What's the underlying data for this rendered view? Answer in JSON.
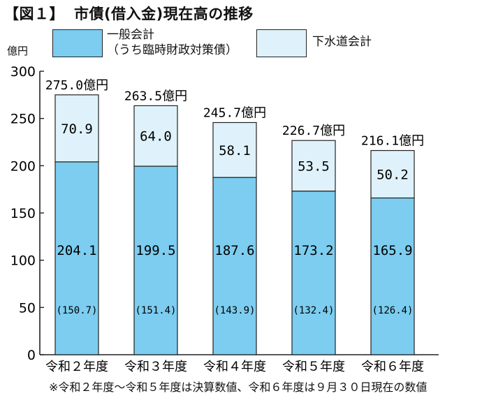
{
  "title": {
    "figure_no": "【図１】",
    "text": "市債(借入金)現在高の推移"
  },
  "unit": "億円",
  "legend": [
    {
      "line1": "一般会計",
      "line2": "（うち臨時財政対策債）",
      "color": "#7ccdf0"
    },
    {
      "line1": "下水道会計",
      "line2": "",
      "color": "#dff2fb"
    }
  ],
  "footnote": "※令和２年度～令和５年度は決算数値、令和６年度は９月３０日現在の数値",
  "chart_data": {
    "type": "bar",
    "stacked": true,
    "title": "市債(借入金)現在高の推移",
    "ylabel": "億円",
    "ylim": [
      0,
      300
    ],
    "yticks": [
      0,
      50,
      100,
      150,
      200,
      250,
      300
    ],
    "grid": false,
    "legend_position": "top",
    "categories": [
      "令和２年度",
      "令和３年度",
      "令和４年度",
      "令和５年度",
      "令和６年度"
    ],
    "series": [
      {
        "name": "一般会計",
        "color": "#7ccdf0",
        "values": [
          204.1,
          199.5,
          187.6,
          173.2,
          165.9
        ]
      },
      {
        "name": "下水道会計",
        "color": "#dff2fb",
        "values": [
          70.9,
          64.0,
          58.1,
          53.5,
          50.2
        ]
      }
    ],
    "sub_values": {
      "name": "うち臨時財政対策債",
      "values": [
        150.7,
        151.4,
        143.9,
        132.4,
        126.4
      ]
    },
    "totals": [
      275.0,
      263.5,
      245.7,
      226.7,
      216.1
    ],
    "labels": {
      "general": [
        "204.1",
        "199.5",
        "187.6",
        "173.2",
        "165.9"
      ],
      "sewer": [
        "70.9",
        "64.0",
        "58.1",
        "53.5",
        "50.2"
      ],
      "sub": [
        "(150.7)",
        "(151.4)",
        "(143.9)",
        "(132.4)",
        "(126.4)"
      ],
      "totals": [
        "275.0億円",
        "263.5億円",
        "245.7億円",
        "226.7億円",
        "216.1億円"
      ]
    }
  }
}
